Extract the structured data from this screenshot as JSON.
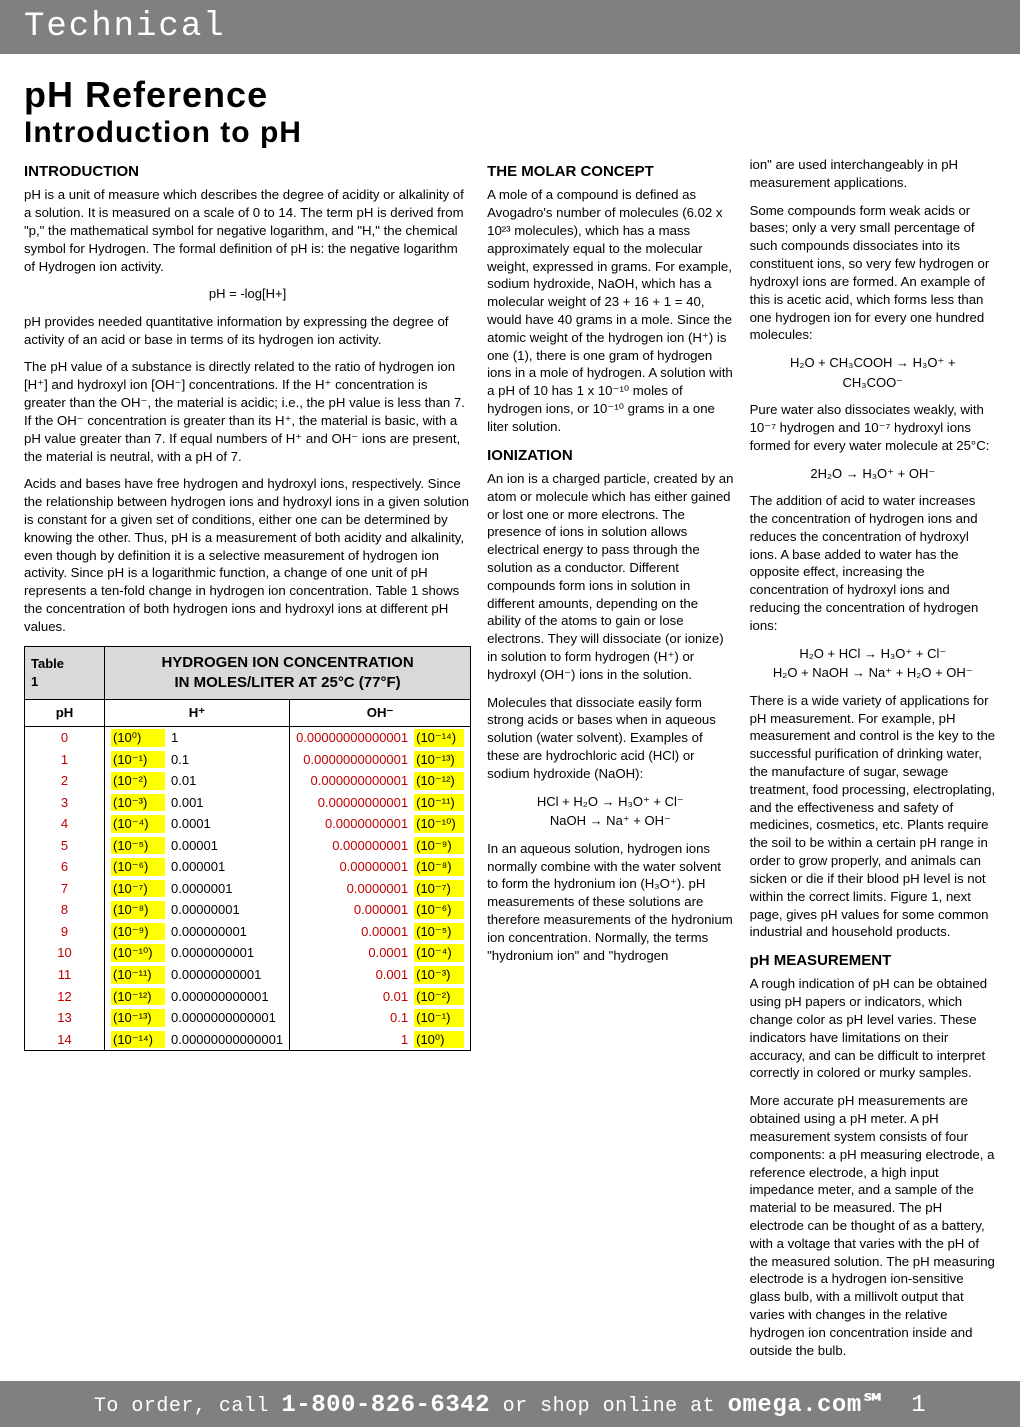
{
  "header": {
    "section": "Technical"
  },
  "titles": {
    "main": "pH Reference",
    "sub": "Introduction to pH"
  },
  "col1": {
    "h_intro": "INTRODUCTION",
    "p1": "pH is a unit of measure which describes the degree of acidity or alkalinity of a solution. It is measured on a scale of 0 to 14. The term pH is derived from \"p,\" the mathematical symbol for negative logarithm, and \"H,\" the chemical symbol for Hydrogen. The formal definition of pH is: the negative logarithm of Hydrogen ion activity.",
    "eq1": "pH = -log[H+]",
    "p2": "pH provides needed quantitative information by expressing the degree of activity of an acid or base in terms of its hydrogen ion activity.",
    "p3": "The pH value of a substance is directly related to the ratio of hydrogen ion [H⁺] and hydroxyl ion [OH⁻] concentrations. If the H⁺ concentration is greater than the OH⁻, the material is acidic; i.e., the pH value is less than 7. If the OH⁻ concentration is greater than its H⁺, the material is basic, with a pH value greater than 7. If equal numbers of H⁺ and OH⁻ ions are present, the material is neutral, with a pH of 7.",
    "p4": "Acids and bases have free hydrogen and hydroxyl ions, respectively. Since the relationship between hydrogen ions and hydroxyl ions in a given solution is constant for a given set of conditions, either one can be determined by knowing the other. Thus, pH is a measurement of both acidity and alkalinity, even though by definition it is a selective measurement of hydrogen ion activity. Since pH is a logarithmic function, a change of one unit of pH represents a ten-fold change in hydrogen ion concentration. Table 1 shows the concentration of both hydrogen ions and hydroxyl ions at different pH values."
  },
  "col2": {
    "h_molar": "THE MOLAR CONCEPT",
    "p1": "A mole of a compound is defined as Avogadro's number of molecules (6.02 x 10²³ molecules), which has a mass approximately equal to the molecular weight, expressed in grams. For example, sodium hydroxide, NaOH, which has a molecular weight of 23 + 16 + 1 = 40, would have 40 grams in a mole. Since the atomic weight of the hydrogen ion (H⁺) is one (1), there is one gram of hydrogen ions in a mole of hydrogen. A solution with a pH of 10 has 1 x 10⁻¹⁰ moles of hydrogen ions, or 10⁻¹⁰ grams in a one liter solution.",
    "h_ion": "IONIZATION",
    "p2": "An ion is a charged particle, created by an atom or molecule which has either gained or lost one or more electrons. The presence of ions in solution allows electrical energy to pass through the solution as a conductor. Different compounds form ions in solution in different amounts, depending on the ability of the atoms to gain or lose electrons. They will dissociate (or ionize) in solution to form hydrogen (H⁺) or hydroxyl (OH⁻) ions in the solution.",
    "p3": "Molecules that dissociate easily form strong acids or bases when in aqueous solution (water solvent). Examples of these are hydrochloric acid (HCl) or sodium hydroxide (NaOH):",
    "eq2a": "HCl + H₂O → H₃O⁺ + Cl⁻",
    "eq2b": "NaOH → Na⁺ + OH⁻",
    "p4": "In an aqueous solution, hydrogen ions normally combine with the water solvent to form the hydronium ion (H₃O⁺). pH measurements of these solutions are therefore measurements of the hydronium ion concentration. Normally, the terms \"hydronium ion\" and \"hydrogen"
  },
  "col3": {
    "p1": "ion\" are used interchangeably in pH measurement applications.",
    "p2": "Some compounds form weak acids or bases; only a very small percentage of such compounds dissociates into its constituent ions, so very few hydrogen or hydroxyl ions are formed. An example of this is acetic acid, which forms less than one hydrogen ion for every one hundred molecules:",
    "eq3a": "H₂O + CH₃COOH → H₃O⁺ +",
    "eq3b": "CH₃COO⁻",
    "p3": "Pure water also dissociates weakly, with 10⁻⁷ hydrogen and 10⁻⁷ hydroxyl ions formed for every water molecule at 25°C:",
    "eq4": "2H₂O → H₃O⁺ + OH⁻",
    "p4": "The addition of acid to water increases the concentration of hydrogen ions and reduces the concentration of hydroxyl ions. A base added to water has the opposite effect, increasing the concentration of hydroxyl ions and reducing the concentration of hydrogen ions:",
    "eq5a": "H₂O + HCl → H₃O⁺ + Cl⁻",
    "eq5b": "H₂O + NaOH → Na⁺ + H₂O + OH⁻",
    "p5": "There is a wide variety of applications for pH measurement. For example, pH measurement and control is the key to the successful purification of drinking water, the manufacture of sugar, sewage treatment, food processing, electroplating, and the effectiveness and safety of medicines, cosmetics, etc. Plants require the soil to be within a certain pH range in order to grow properly, and animals can sicken or die if their blood pH level is not within the correct limits. Figure 1, next page, gives pH values for some common industrial and household products.",
    "h_meas": "pH MEASUREMENT",
    "p6": "A rough indication of pH can be obtained using pH papers or indicators, which change color as pH level varies. These indicators have limitations on their accuracy, and can be difficult to interpret correctly in colored or murky samples.",
    "p7": "More accurate pH measurements are obtained using a pH meter. A pH measurement system consists of four components: a pH measuring electrode, a reference electrode, a high input impedance meter, and a sample of the material to be measured. The pH electrode can be thought of as a battery, with a voltage that varies with the pH of the measured solution. The pH measuring electrode is a hydrogen ion-sensitive glass bulb, with a millivolt output that varies with changes in the relative hydrogen ion concentration inside and outside the bulb."
  },
  "table": {
    "label": "Table 1",
    "title": "HYDROGEN ION CONCENTRATION\nIN MOLES/LITER AT 25°C (77°F)",
    "headers": {
      "ph": "pH",
      "hplus": "H⁺",
      "oh": "OH⁻"
    },
    "rows": [
      {
        "ph": "0",
        "h_sci": "(10⁰)",
        "h_dec": "1",
        "oh_dec": "0.00000000000001",
        "oh_sci": "(10⁻¹⁴)"
      },
      {
        "ph": "1",
        "h_sci": "(10⁻¹)",
        "h_dec": "0.1",
        "oh_dec": "0.0000000000001",
        "oh_sci": "(10⁻¹³)"
      },
      {
        "ph": "2",
        "h_sci": "(10⁻²)",
        "h_dec": "0.01",
        "oh_dec": "0.000000000001",
        "oh_sci": "(10⁻¹²)"
      },
      {
        "ph": "3",
        "h_sci": "(10⁻³)",
        "h_dec": "0.001",
        "oh_dec": "0.00000000001",
        "oh_sci": "(10⁻¹¹)"
      },
      {
        "ph": "4",
        "h_sci": "(10⁻⁴)",
        "h_dec": "0.0001",
        "oh_dec": "0.0000000001",
        "oh_sci": "(10⁻¹⁰)"
      },
      {
        "ph": "5",
        "h_sci": "(10⁻⁵)",
        "h_dec": "0.00001",
        "oh_dec": "0.000000001",
        "oh_sci": "(10⁻⁹)"
      },
      {
        "ph": "6",
        "h_sci": "(10⁻⁶)",
        "h_dec": "0.000001",
        "oh_dec": "0.00000001",
        "oh_sci": "(10⁻⁸)"
      },
      {
        "ph": "7",
        "h_sci": "(10⁻⁷)",
        "h_dec": "0.0000001",
        "oh_dec": "0.0000001",
        "oh_sci": "(10⁻⁷)"
      },
      {
        "ph": "8",
        "h_sci": "(10⁻⁸)",
        "h_dec": "0.00000001",
        "oh_dec": "0.000001",
        "oh_sci": "(10⁻⁶)"
      },
      {
        "ph": "9",
        "h_sci": "(10⁻⁹)",
        "h_dec": "0.000000001",
        "oh_dec": "0.00001",
        "oh_sci": "(10⁻⁵)"
      },
      {
        "ph": "10",
        "h_sci": "(10⁻¹⁰)",
        "h_dec": "0.0000000001",
        "oh_dec": "0.0001",
        "oh_sci": "(10⁻⁴)"
      },
      {
        "ph": "11",
        "h_sci": "(10⁻¹¹)",
        "h_dec": "0.00000000001",
        "oh_dec": "0.001",
        "oh_sci": "(10⁻³)"
      },
      {
        "ph": "12",
        "h_sci": "(10⁻¹²)",
        "h_dec": "0.000000000001",
        "oh_dec": "0.01",
        "oh_sci": "(10⁻²)"
      },
      {
        "ph": "13",
        "h_sci": "(10⁻¹³)",
        "h_dec": "0.0000000000001",
        "oh_dec": "0.1",
        "oh_sci": "(10⁻¹)"
      },
      {
        "ph": "14",
        "h_sci": "(10⁻¹⁴)",
        "h_dec": "0.00000000000001",
        "oh_dec": "1",
        "oh_sci": "(10⁰)"
      }
    ]
  },
  "footer": {
    "pre": "To order, call ",
    "phone": "1-800-826-6342",
    "mid": " or shop online at ",
    "site": "omega.com℠",
    "page": "1"
  },
  "style": {
    "colors": {
      "bar_bg": "#808080",
      "bar_fg": "#ffffff",
      "highlight": "#ffff00",
      "red_text": "#c00000",
      "table_header_bg": "#d9d9d9",
      "border": "#000000"
    },
    "fontsizes": {
      "topbar": 34,
      "title": 36,
      "subtitle": 30,
      "body": 13.2,
      "h3": 15,
      "table": 13,
      "footer": 20
    }
  }
}
